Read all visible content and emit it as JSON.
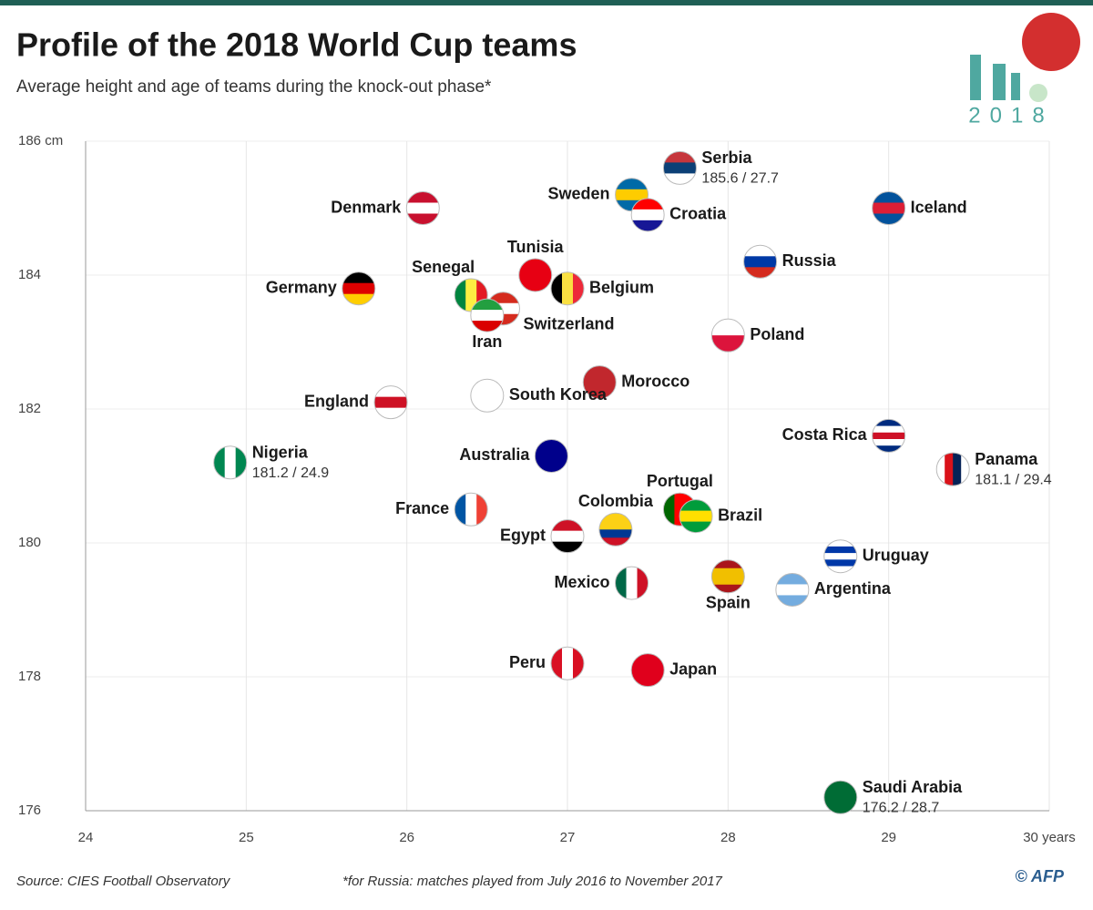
{
  "chart_data": {
    "type": "scatter",
    "title": "Profile of the 2018 World Cup teams",
    "subtitle": "Average height and age of teams during the knock-out phase*",
    "source": "Source: CIES Football Observatory",
    "footnote": "*for Russia: matches played from July 2016 to November 2017",
    "credit": "© AFP",
    "logo_text": "2018",
    "xlim": [
      24,
      30
    ],
    "ylim": [
      176,
      186
    ],
    "xticks": [
      24,
      25,
      26,
      27,
      28,
      29,
      {
        "value": 30,
        "label": "30 years"
      }
    ],
    "yticks": [
      176,
      178,
      180,
      182,
      184,
      {
        "value": 186,
        "label": "186 cm"
      }
    ],
    "grid": true,
    "points": [
      {
        "name": "Serbia",
        "x": 27.7,
        "y": 185.6,
        "value_label": "185.6 / 27.7",
        "colors": [
          "#c6363c",
          "#0c4076",
          "#ffffff"
        ],
        "orient": "h"
      },
      {
        "name": "Denmark",
        "x": 26.1,
        "y": 185.0,
        "colors": [
          "#c8102e",
          "#ffffff",
          "#c8102e"
        ],
        "orient": "h"
      },
      {
        "name": "Sweden",
        "x": 27.4,
        "y": 185.2,
        "colors": [
          "#006aa7",
          "#fecc00",
          "#006aa7"
        ],
        "orient": "h"
      },
      {
        "name": "Croatia",
        "x": 27.5,
        "y": 184.9,
        "colors": [
          "#ff0000",
          "#ffffff",
          "#171796"
        ],
        "orient": "h"
      },
      {
        "name": "Iceland",
        "x": 29.0,
        "y": 185.0,
        "colors": [
          "#02529c",
          "#dc1e35",
          "#02529c"
        ],
        "orient": "h"
      },
      {
        "name": "Russia",
        "x": 28.2,
        "y": 184.2,
        "colors": [
          "#ffffff",
          "#0039a6",
          "#d52b1e"
        ],
        "orient": "h"
      },
      {
        "name": "Tunisia",
        "x": 26.8,
        "y": 184.0,
        "colors": [
          "#e70013"
        ],
        "orient": "h"
      },
      {
        "name": "Senegal",
        "x": 26.4,
        "y": 183.7,
        "colors": [
          "#00853f",
          "#fdef42",
          "#e31b23"
        ],
        "orient": "v"
      },
      {
        "name": "Belgium",
        "x": 27.0,
        "y": 183.8,
        "colors": [
          "#000000",
          "#fae042",
          "#ed2939"
        ],
        "orient": "v"
      },
      {
        "name": "Germany",
        "x": 25.7,
        "y": 183.8,
        "colors": [
          "#000000",
          "#dd0000",
          "#ffce00"
        ],
        "orient": "h"
      },
      {
        "name": "Switzerland",
        "x": 26.6,
        "y": 183.5,
        "colors": [
          "#d52b1e",
          "#ffffff",
          "#d52b1e"
        ],
        "orient": "h"
      },
      {
        "name": "Iran",
        "x": 26.5,
        "y": 183.4,
        "colors": [
          "#239f40",
          "#ffffff",
          "#da0000"
        ],
        "orient": "h"
      },
      {
        "name": "Poland",
        "x": 28.0,
        "y": 183.1,
        "colors": [
          "#ffffff",
          "#dc143c"
        ],
        "orient": "h"
      },
      {
        "name": "Morocco",
        "x": 27.2,
        "y": 182.4,
        "colors": [
          "#c1272d"
        ],
        "orient": "h"
      },
      {
        "name": "South Korea",
        "x": 26.5,
        "y": 182.2,
        "colors": [
          "#ffffff"
        ],
        "orient": "h"
      },
      {
        "name": "England",
        "x": 25.9,
        "y": 182.1,
        "colors": [
          "#ffffff",
          "#ce1124",
          "#ffffff"
        ],
        "orient": "h"
      },
      {
        "name": "Costa Rica",
        "x": 29.0,
        "y": 181.6,
        "colors": [
          "#002b7f",
          "#ffffff",
          "#ce1126",
          "#ffffff",
          "#002b7f"
        ],
        "orient": "h"
      },
      {
        "name": "Nigeria",
        "x": 24.9,
        "y": 181.2,
        "value_label": "181.2 / 24.9",
        "colors": [
          "#008751",
          "#ffffff",
          "#008751"
        ],
        "orient": "v"
      },
      {
        "name": "Panama",
        "x": 29.4,
        "y": 181.1,
        "value_label": "181.1 / 29.4",
        "colors": [
          "#ffffff",
          "#da121a",
          "#072357",
          "#ffffff"
        ],
        "orient": "v"
      },
      {
        "name": "Australia",
        "x": 26.9,
        "y": 181.3,
        "colors": [
          "#00008b"
        ],
        "orient": "h"
      },
      {
        "name": "France",
        "x": 26.4,
        "y": 180.5,
        "colors": [
          "#0055a4",
          "#ffffff",
          "#ef4135"
        ],
        "orient": "v"
      },
      {
        "name": "Portugal",
        "x": 27.7,
        "y": 180.5,
        "colors": [
          "#006600",
          "#ff0000",
          "#ff0000"
        ],
        "orient": "v"
      },
      {
        "name": "Brazil",
        "x": 27.8,
        "y": 180.4,
        "colors": [
          "#009c3b",
          "#ffdf00",
          "#009c3b"
        ],
        "orient": "h"
      },
      {
        "name": "Colombia",
        "x": 27.3,
        "y": 180.2,
        "colors": [
          "#fcd116",
          "#fcd116",
          "#003893",
          "#ce1126"
        ],
        "orient": "h"
      },
      {
        "name": "Egypt",
        "x": 27.0,
        "y": 180.1,
        "colors": [
          "#ce1126",
          "#ffffff",
          "#000000"
        ],
        "orient": "h"
      },
      {
        "name": "Uruguay",
        "x": 28.7,
        "y": 179.8,
        "colors": [
          "#ffffff",
          "#0038a8",
          "#ffffff",
          "#0038a8",
          "#ffffff"
        ],
        "orient": "h"
      },
      {
        "name": "Mexico",
        "x": 27.4,
        "y": 179.4,
        "colors": [
          "#006847",
          "#ffffff",
          "#ce1126"
        ],
        "orient": "v"
      },
      {
        "name": "Spain",
        "x": 28.0,
        "y": 179.5,
        "colors": [
          "#aa151b",
          "#f1bf00",
          "#f1bf00",
          "#aa151b"
        ],
        "orient": "h"
      },
      {
        "name": "Argentina",
        "x": 28.4,
        "y": 179.3,
        "colors": [
          "#74acdf",
          "#ffffff",
          "#74acdf"
        ],
        "orient": "h"
      },
      {
        "name": "Peru",
        "x": 27.0,
        "y": 178.2,
        "colors": [
          "#d91023",
          "#ffffff",
          "#d91023"
        ],
        "orient": "v"
      },
      {
        "name": "Japan",
        "x": 27.5,
        "y": 178.1,
        "colors": [
          "#e0001c"
        ],
        "orient": "h"
      },
      {
        "name": "Saudi Arabia",
        "x": 28.7,
        "y": 176.2,
        "value_label": "176.2 / 28.7",
        "colors": [
          "#006c35"
        ],
        "orient": "h"
      }
    ]
  }
}
